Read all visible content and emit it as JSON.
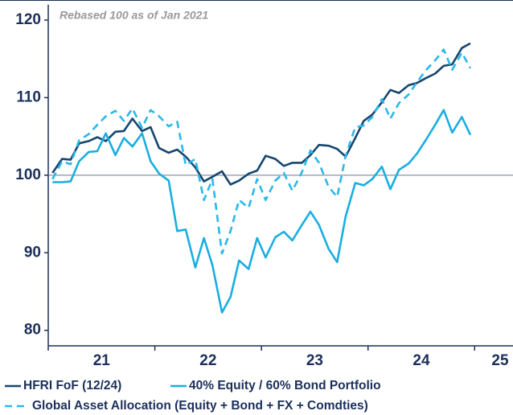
{
  "chart_data": {
    "type": "line",
    "annotation": "Rebased 100 as of Jan 2021",
    "x": [
      2021.04,
      2021.13,
      2021.21,
      2021.29,
      2021.38,
      2021.46,
      2021.54,
      2021.63,
      2021.71,
      2021.79,
      2021.88,
      2021.96,
      2022.04,
      2022.13,
      2022.21,
      2022.29,
      2022.38,
      2022.46,
      2022.54,
      2022.63,
      2022.71,
      2022.79,
      2022.88,
      2022.96,
      2023.04,
      2023.13,
      2023.21,
      2023.29,
      2023.38,
      2023.46,
      2023.54,
      2023.63,
      2023.71,
      2023.79,
      2023.88,
      2023.96,
      2024.04,
      2024.13,
      2024.21,
      2024.29,
      2024.38,
      2024.46,
      2024.54,
      2024.63,
      2024.71,
      2024.79,
      2024.88,
      2024.96
    ],
    "series": [
      {
        "name": "HFRI FoF (12/24)",
        "color": "#16466e",
        "dash": false,
        "values": [
          100.3,
          102.1,
          102,
          104.1,
          104.4,
          104.9,
          104.4,
          105.6,
          105.7,
          107.3,
          105.7,
          106.2,
          103.5,
          102.9,
          103.3,
          102.4,
          101,
          99.2,
          99.8,
          100.5,
          98.8,
          99.3,
          100.2,
          100.6,
          102.5,
          102.1,
          101.2,
          101.6,
          101.6,
          102.6,
          103.9,
          103.8,
          103.4,
          102.4,
          104.8,
          107,
          107.8,
          109.4,
          111,
          110.6,
          111.6,
          111.9,
          112.5,
          113.1,
          114.1,
          114.3,
          116.4,
          117
        ]
      },
      {
        "name": "40% Equity / 60% Bond Portfolio",
        "color": "#1aaee0",
        "dash": false,
        "values": [
          99.1,
          99.1,
          99.2,
          101.8,
          103,
          103.1,
          105.4,
          102.6,
          104.8,
          103.7,
          105.4,
          101.8,
          100.2,
          99.3,
          92.8,
          93,
          88.1,
          91.9,
          88.4,
          82.3,
          84.3,
          89,
          87.9,
          91.9,
          89.4,
          92,
          92.7,
          91.6,
          93.6,
          95.3,
          93.6,
          90.5,
          88.8,
          94.7,
          99,
          98.7,
          99.5,
          101.1,
          98.2,
          100.7,
          101.5,
          102.8,
          104.5,
          106.5,
          108.4,
          105.5,
          107.5,
          105.2
        ]
      },
      {
        "name": "Global Asset Allocation (Equity + Bond + FX + Comdties)",
        "color": "#2bb8ea",
        "dash": true,
        "values": [
          99.5,
          101.8,
          101.4,
          104.5,
          105.3,
          106.5,
          107.6,
          108.3,
          107,
          108.6,
          106.1,
          108.4,
          107.6,
          106.3,
          106.9,
          101.3,
          102.1,
          96.8,
          99.5,
          89.9,
          92.8,
          96.8,
          95.8,
          99.5,
          96.8,
          99.3,
          100.3,
          98,
          100.4,
          103.2,
          101.6,
          98.5,
          97.2,
          102.5,
          106.2,
          106.4,
          107.5,
          109.8,
          107.3,
          109.3,
          110.4,
          112,
          113.5,
          114.8,
          116.2,
          113.6,
          115.8,
          113.8
        ]
      }
    ],
    "reference_line": 100,
    "xlim": [
      2021,
      2025.36
    ],
    "xticks": [
      {
        "value": 2021,
        "label": "21"
      },
      {
        "value": 2022,
        "label": "22"
      },
      {
        "value": 2023,
        "label": "23"
      },
      {
        "value": 2024,
        "label": "24"
      },
      {
        "value": 2025,
        "label": "25"
      }
    ],
    "ylim": [
      78,
      122
    ],
    "yticks": [
      80,
      90,
      100,
      110,
      120
    ],
    "grid": false
  }
}
